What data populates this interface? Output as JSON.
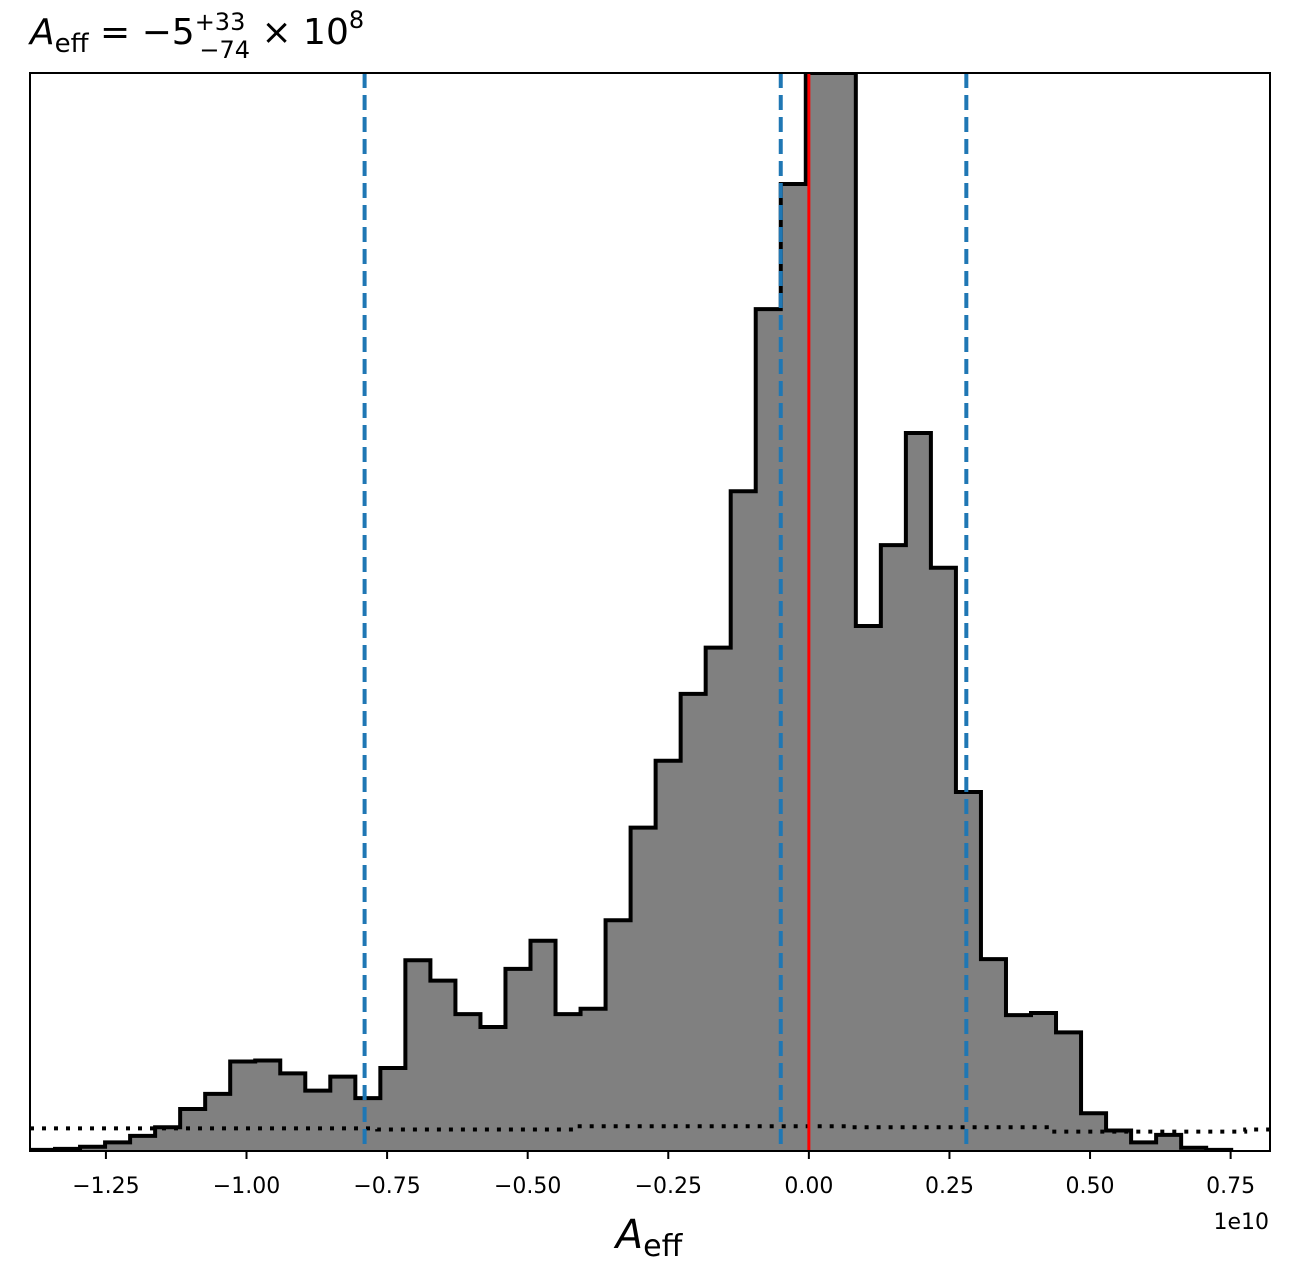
{
  "chart_data": {
    "type": "histogram",
    "title": {
      "base": "A",
      "base_sub": "eff",
      "equals": " = −5",
      "upper": "+33",
      "lower": "−74",
      "times": " × 10",
      "exp": "8"
    },
    "xlabel": {
      "base": "A",
      "sub": "eff"
    },
    "offset_label": "1e10",
    "xlim": [
      -1.385,
      0.82
    ],
    "ylim": [
      0,
      1
    ],
    "x_ticks": [
      -1.25,
      -1.0,
      -0.75,
      -0.5,
      -0.25,
      0.0,
      0.25,
      0.5,
      0.75
    ],
    "x_tick_labels": [
      "−1.25",
      "−1.00",
      "−0.75",
      "−0.50",
      "−0.25",
      "0.00",
      "0.25",
      "0.50",
      "0.75"
    ],
    "bin_start": -1.385,
    "bin_width": 0.0445,
    "values": [
      0.001,
      0.002,
      0.004,
      0.008,
      0.014,
      0.022,
      0.039,
      0.053,
      0.083,
      0.084,
      0.072,
      0.056,
      0.069,
      0.049,
      0.077,
      0.177,
      0.158,
      0.127,
      0.115,
      0.169,
      0.195,
      0.127,
      0.132,
      0.214,
      0.3,
      0.362,
      0.424,
      0.467,
      0.612,
      0.781,
      0.897,
      1.0,
      1.0,
      0.487,
      0.562,
      0.666,
      0.541,
      0.333,
      0.178,
      0.126,
      0.128,
      0.11,
      0.035,
      0.019,
      0.008,
      0.015,
      0.003,
      0.001
    ],
    "prior_line": {
      "style": "dotted",
      "color": "#000000",
      "levels": [
        0.021,
        0.021,
        0.021,
        0.021,
        0.021,
        0.021,
        0.021,
        0.021,
        0.021,
        0.021,
        0.021,
        0.021,
        0.021,
        0.021,
        0.02,
        0.02,
        0.02,
        0.02,
        0.02,
        0.02,
        0.02,
        0.02,
        0.023,
        0.023,
        0.023,
        0.023,
        0.023,
        0.023,
        0.023,
        0.023,
        0.023,
        0.023,
        0.023,
        0.022,
        0.022,
        0.022,
        0.022,
        0.022,
        0.022,
        0.022,
        0.022,
        0.018,
        0.018,
        0.018,
        0.018,
        0.018,
        0.018,
        0.018,
        0.018,
        0.02
      ]
    },
    "quantile_lines": [
      -0.79,
      -0.05,
      0.28
    ],
    "quantile_color": "#1f77b4",
    "truth_line": 0.0,
    "truth_color": "#ff0000",
    "fill_color": "#808080",
    "edge_color": "#000000"
  }
}
